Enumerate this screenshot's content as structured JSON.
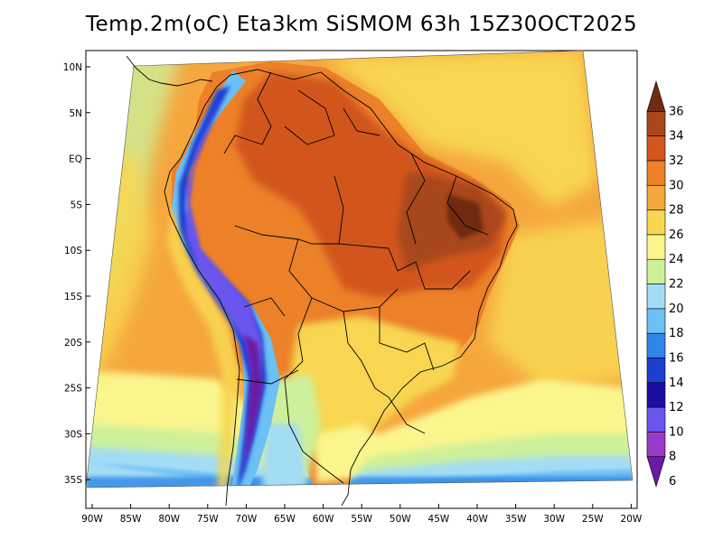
{
  "title": "Temp.2m(oC) Eta3km SiSMOM 63h 15Z30OCT2025",
  "map": {
    "lat_labels": [
      "10N",
      "5N",
      "EQ",
      "5S",
      "10S",
      "15S",
      "20S",
      "25S",
      "30S",
      "35S"
    ],
    "lon_labels": [
      "90W",
      "85W",
      "80W",
      "75W",
      "70W",
      "65W",
      "60W",
      "55W",
      "50W",
      "45W",
      "40W",
      "35W",
      "30W",
      "25W",
      "20W"
    ]
  },
  "colorbar": {
    "labels": [
      "36",
      "34",
      "32",
      "30",
      "28",
      "26",
      "24",
      "22",
      "20",
      "18",
      "16",
      "14",
      "12",
      "10",
      "8",
      "6"
    ],
    "bins": [
      {
        "lo": 6,
        "hi": 8,
        "color": "#6a1aa3"
      },
      {
        "lo": 8,
        "hi": 10,
        "color": "#9a3ac8"
      },
      {
        "lo": 10,
        "hi": 12,
        "color": "#6a55ee"
      },
      {
        "lo": 12,
        "hi": 14,
        "color": "#1a0fa0"
      },
      {
        "lo": 14,
        "hi": 16,
        "color": "#1c3fcf"
      },
      {
        "lo": 16,
        "hi": 18,
        "color": "#2f86e8"
      },
      {
        "lo": 18,
        "hi": 20,
        "color": "#6cc0f4"
      },
      {
        "lo": 20,
        "hi": 22,
        "color": "#a3dcf5"
      },
      {
        "lo": 22,
        "hi": 24,
        "color": "#cdf09a"
      },
      {
        "lo": 24,
        "hi": 26,
        "color": "#faf58c"
      },
      {
        "lo": 26,
        "hi": 28,
        "color": "#f8d651"
      },
      {
        "lo": 28,
        "hi": 30,
        "color": "#f5a73e"
      },
      {
        "lo": 30,
        "hi": 32,
        "color": "#ec8129"
      },
      {
        "lo": 32,
        "hi": 34,
        "color": "#d2561e"
      },
      {
        "lo": 34,
        "hi": 36,
        "color": "#a8461c"
      },
      {
        "lo": 36,
        "hi": 38,
        "color": "#6f2a10"
      }
    ]
  }
}
